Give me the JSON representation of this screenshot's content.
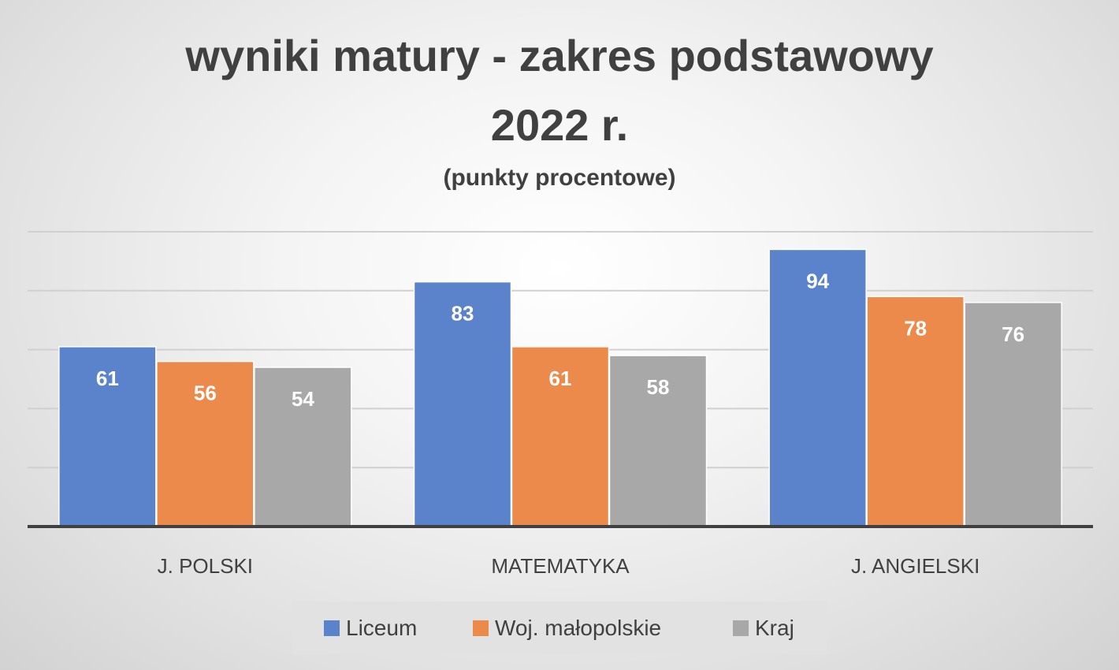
{
  "chart_data": {
    "type": "bar",
    "title_line1": "wyniki matury - zakres podstawowy",
    "title_line2": "2022 r.",
    "subtitle": "(punkty procentowe)",
    "categories": [
      "J. POLSKI",
      "MATEMATYKA",
      "J. ANGIELSKI"
    ],
    "series": [
      {
        "name": "Liceum",
        "values": [
          61,
          83,
          94
        ],
        "color": "#5b83cc"
      },
      {
        "name": "Woj. małopolskie",
        "values": [
          56,
          61,
          78
        ],
        "color": "#eb8a4a"
      },
      {
        "name": "Kraj",
        "values": [
          54,
          58,
          76
        ],
        "color": "#a8a8a8"
      }
    ],
    "ylim": [
      0,
      100
    ],
    "grid": true,
    "legend": "bottom",
    "data_labels": true
  }
}
